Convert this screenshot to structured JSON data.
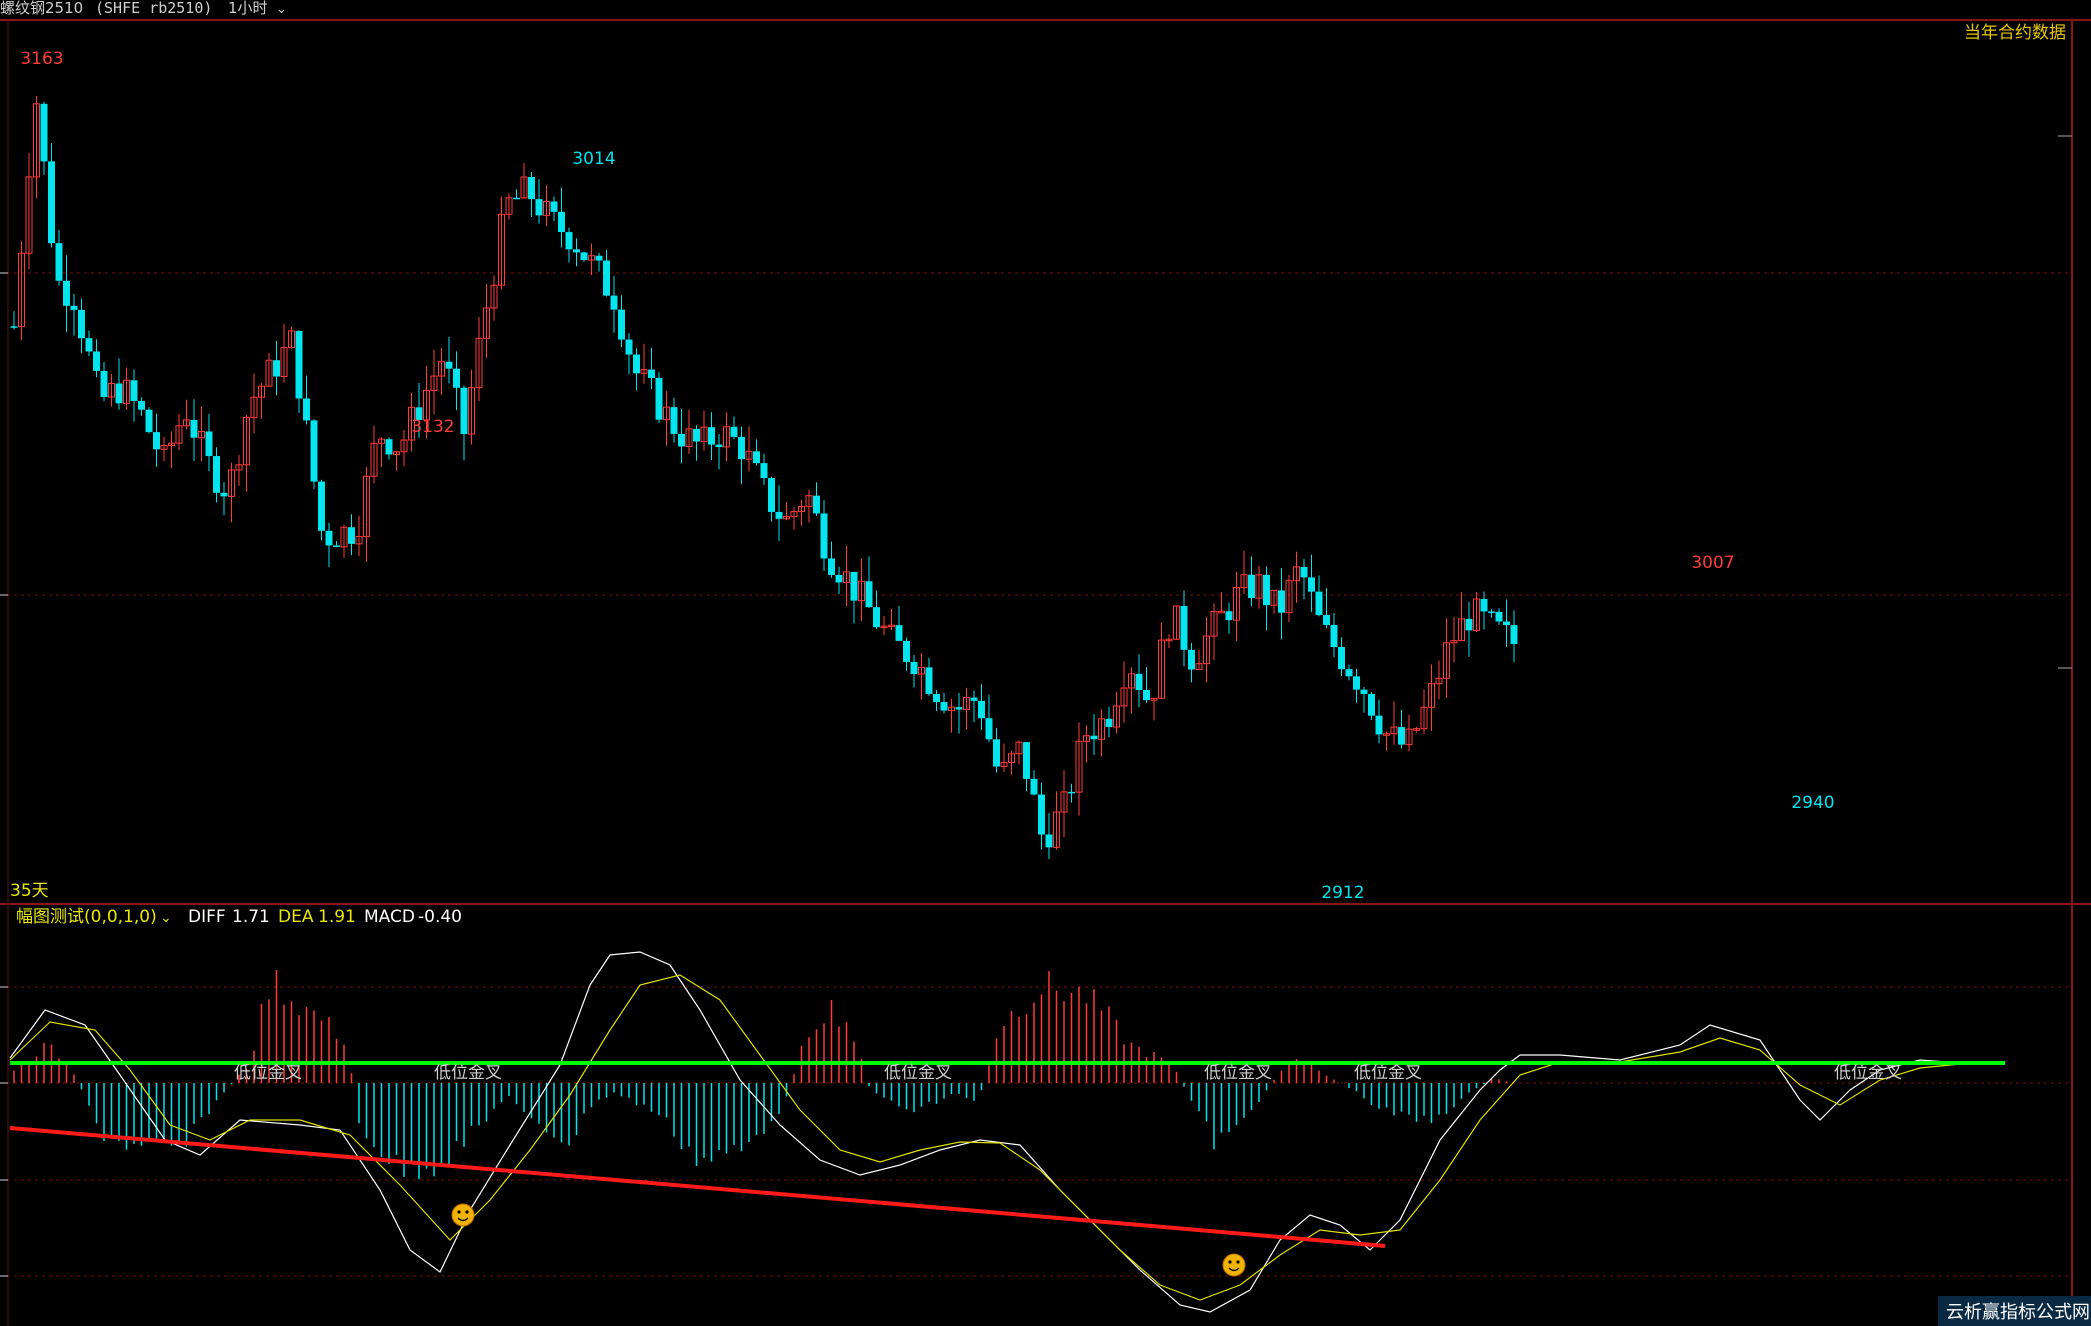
{
  "header": {
    "instrument": "螺纹钢2510",
    "code": "(SHFE rb2510)",
    "period": "1小时",
    "right_label": "当年合约数据"
  },
  "colors": {
    "up": "#ff3b3b",
    "down": "#00e5ee",
    "diff_line": "#ffffff",
    "dea_line": "#e0e000",
    "support_line": "#00ff00",
    "trend_line": "#ff1a1a",
    "grid": "#7a1010",
    "background": "#000000"
  },
  "main_panel": {
    "days_label": "35天",
    "price_labels": [
      {
        "text": "3163",
        "kind": "high"
      },
      {
        "text": "3132",
        "kind": "high"
      },
      {
        "text": "3014",
        "kind": "low"
      },
      {
        "text": "3007",
        "kind": "high"
      },
      {
        "text": "2912",
        "kind": "low"
      },
      {
        "text": "2940",
        "kind": "low"
      }
    ]
  },
  "sub_panel": {
    "indicator_name": "幅图测试(0,0,1,0)",
    "diff_label": "DIFF",
    "diff_value": "1.71",
    "dea_label": "DEA",
    "dea_value": "1.91",
    "macd_label": "MACD",
    "macd_value": "-0.40",
    "signal_text": "低位金叉",
    "signal_count": 6,
    "smiley_count": 2
  },
  "watermark": "云析赢指标公式网",
  "chart_data": {
    "type": "candlestick",
    "title": "螺纹钢2510 (SHFE rb2510) 1小时",
    "annotated_points": [
      {
        "label": "3163",
        "value": 3163,
        "type": "high"
      },
      {
        "label": "3014",
        "value": 3014,
        "type": "low"
      },
      {
        "label": "3132",
        "value": 3132,
        "type": "high"
      },
      {
        "label": "2912",
        "value": 2912,
        "type": "low"
      },
      {
        "label": "3007",
        "value": 3007,
        "type": "high"
      },
      {
        "label": "2940",
        "value": 2940,
        "type": "low"
      }
    ],
    "indicator": {
      "DIFF": 1.71,
      "DEA": 1.91,
      "MACD": -0.4
    },
    "grid": true
  }
}
